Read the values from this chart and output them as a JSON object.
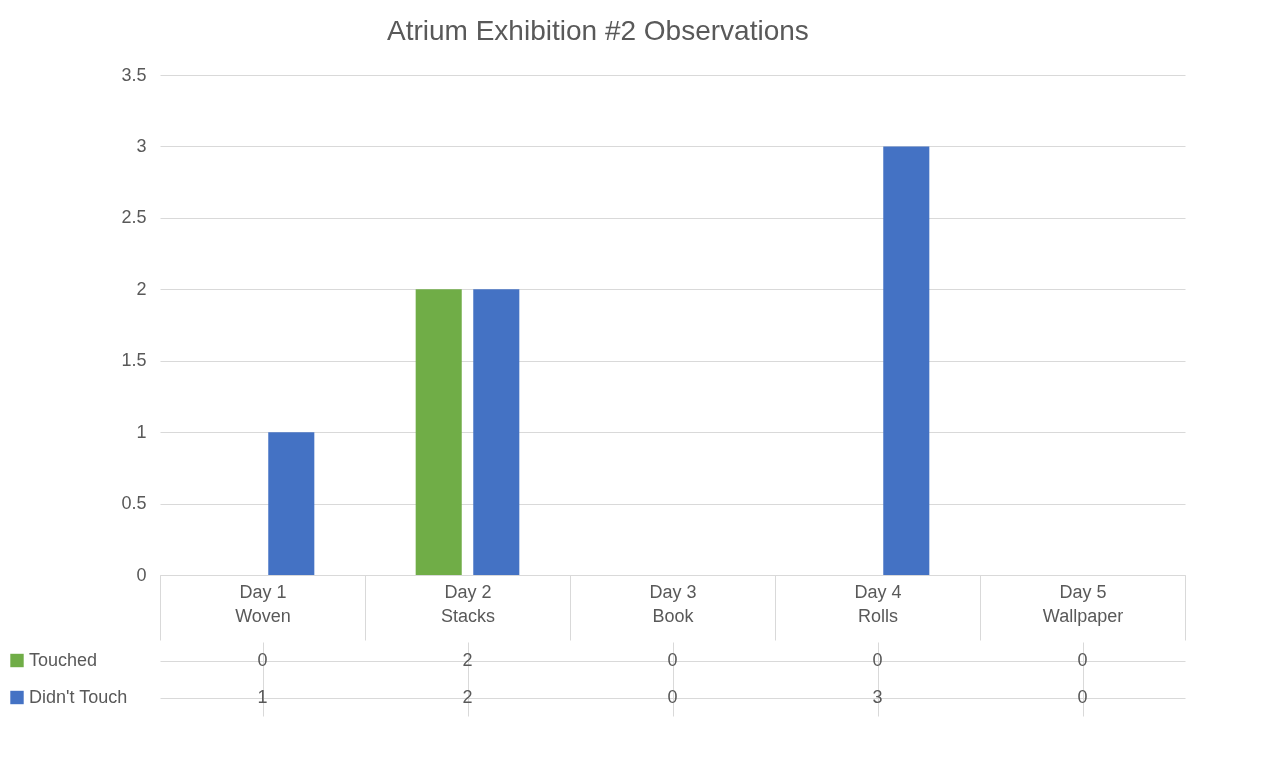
{
  "chart_data": {
    "type": "bar",
    "title": "Atrium Exhibition #2 Observations",
    "categories": [
      "Day 1\nWoven",
      "Day 2\nStacks",
      "Day 3\nBook",
      "Day 4\nRolls",
      "Day 5\nWallpaper"
    ],
    "series": [
      {
        "name": "Touched",
        "color": "#70ad47",
        "values": [
          0,
          2,
          0,
          0,
          0
        ]
      },
      {
        "name": "Didn't Touch",
        "color": "#4472c4",
        "values": [
          1,
          2,
          0,
          3,
          0
        ]
      }
    ],
    "ylim": [
      0,
      3.5
    ],
    "yticks": [
      0,
      0.5,
      1,
      1.5,
      2,
      2.5,
      3,
      3.5
    ],
    "grid": "y",
    "data_labels": true,
    "legend": "bottom left"
  }
}
